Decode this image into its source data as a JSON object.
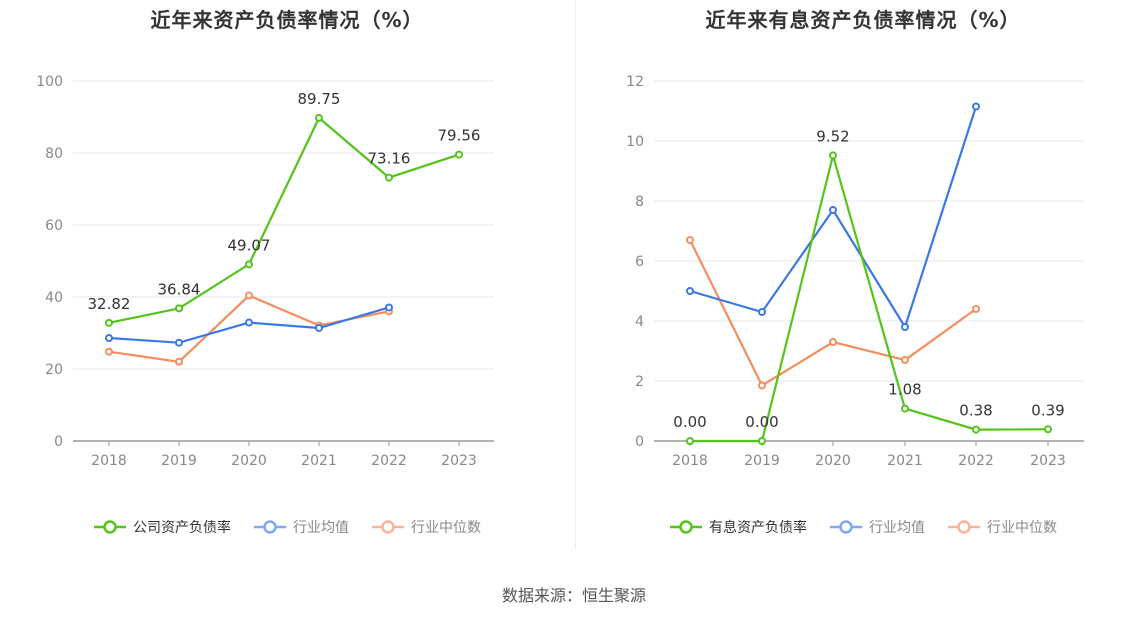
{
  "chart_data": [
    {
      "type": "line",
      "title": "近年来资产负债率情况（%）",
      "categories": [
        "2018",
        "2019",
        "2020",
        "2021",
        "2022",
        "2023"
      ],
      "ylim": [
        0,
        100
      ],
      "yticks": [
        0,
        20,
        40,
        60,
        80,
        100
      ],
      "grid": true,
      "legend_position": "bottom",
      "series": [
        {
          "name": "公司资产负债率",
          "color": "#52c41a",
          "values": [
            32.82,
            36.84,
            49.07,
            89.75,
            73.16,
            79.56
          ],
          "labels": [
            "32.82",
            "36.84",
            "49.07",
            "89.75",
            "73.16",
            "79.56"
          ]
        },
        {
          "name": "行业均值",
          "color": "#3b78e7",
          "values": [
            28.6,
            27.3,
            32.9,
            31.4,
            37.1,
            null
          ]
        },
        {
          "name": "行业中位数",
          "color": "#f58d5f",
          "values": [
            24.8,
            22.0,
            40.4,
            32.1,
            36.0,
            null
          ]
        }
      ]
    },
    {
      "type": "line",
      "title": "近年来有息资产负债率情况（%）",
      "categories": [
        "2018",
        "2019",
        "2020",
        "2021",
        "2022",
        "2023"
      ],
      "ylim": [
        0,
        12
      ],
      "yticks": [
        0,
        2,
        4,
        6,
        8,
        10,
        12
      ],
      "grid": true,
      "legend_position": "bottom",
      "series": [
        {
          "name": "有息资产负债率",
          "color": "#52c41a",
          "values": [
            0.0,
            0.0,
            9.52,
            1.08,
            0.38,
            0.39
          ],
          "labels": [
            "0.00",
            "0.00",
            "9.52",
            "1.08",
            "0.38",
            "0.39"
          ]
        },
        {
          "name": "行业均值",
          "color": "#3b78e7",
          "values": [
            5.0,
            4.3,
            7.7,
            3.8,
            11.15,
            null
          ]
        },
        {
          "name": "行业中位数",
          "color": "#f58d5f",
          "values": [
            6.7,
            1.85,
            3.3,
            2.7,
            4.4,
            null
          ]
        }
      ]
    }
  ],
  "footer": {
    "source": "数据来源：恒生聚源"
  }
}
